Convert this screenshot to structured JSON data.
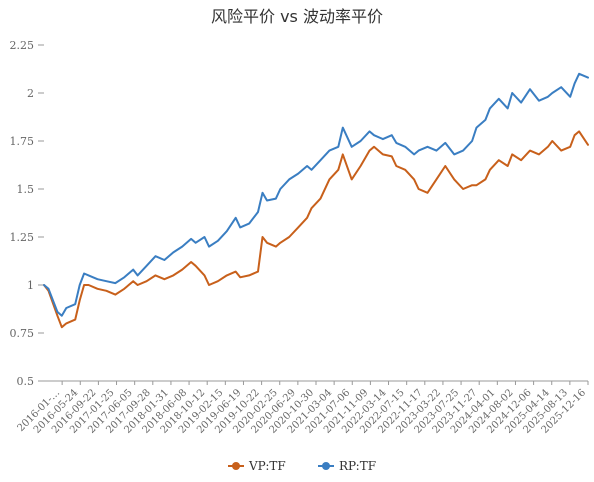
{
  "chart_data": {
    "type": "line",
    "title": "风险平价 vs 波动率平价",
    "xlabel": "",
    "ylabel": "",
    "ylim": [
      0.5,
      2.25
    ],
    "yticks": [
      "0.5",
      "0.75",
      "1",
      "1.25",
      "1.5",
      "1.75",
      "2",
      "2.25"
    ],
    "ytick_values": [
      0.5,
      0.75,
      1,
      1.25,
      1.5,
      1.75,
      2,
      2.25
    ],
    "grid": false,
    "legend_position": "bottom-center",
    "x_start": "2016-01",
    "x_end": "2026-03",
    "xticks": [
      "2016-01-…",
      "2016-05-24",
      "2016-09-22",
      "2017-01-25",
      "2017-06-05",
      "2017-09-28",
      "2018-01-31",
      "2018-06-08",
      "2018-10-12",
      "2019-02-15",
      "2019-06-19",
      "2019-10-22",
      "2020-02-25",
      "2020-06-29",
      "2020-10-30",
      "2021-03-04",
      "2021-07-06",
      "2021-11-09",
      "2022-03-14",
      "2022-07-15",
      "2022-11-17",
      "2023-03-22",
      "2023-07-25",
      "2023-11-27",
      "2024-04-01",
      "2024-08-02",
      "2024-12-06",
      "2025-04-14",
      "2025-08-13",
      "2025-12-16"
    ],
    "series": [
      {
        "name": "VP:TF",
        "color": "#c8601b",
        "x": [
          "2016-01",
          "2016-02",
          "2016-04",
          "2016-05",
          "2016-06",
          "2016-08",
          "2016-09",
          "2016-10",
          "2016-11",
          "2017-01",
          "2017-03",
          "2017-05",
          "2017-07",
          "2017-09",
          "2017-10",
          "2017-12",
          "2018-02",
          "2018-04",
          "2018-06",
          "2018-08",
          "2018-10",
          "2018-11",
          "2019-01",
          "2019-02",
          "2019-04",
          "2019-06",
          "2019-08",
          "2019-09",
          "2019-11",
          "2020-01",
          "2020-02",
          "2020-03",
          "2020-05",
          "2020-06",
          "2020-08",
          "2020-10",
          "2020-12",
          "2021-01",
          "2021-03",
          "2021-05",
          "2021-07",
          "2021-08",
          "2021-10",
          "2021-12",
          "2022-02",
          "2022-03",
          "2022-05",
          "2022-07",
          "2022-08",
          "2022-10",
          "2022-12",
          "2023-01",
          "2023-03",
          "2023-05",
          "2023-07",
          "2023-09",
          "2023-11",
          "2024-01",
          "2024-02",
          "2024-04",
          "2024-05",
          "2024-07",
          "2024-09",
          "2024-10",
          "2024-12",
          "2025-02",
          "2025-04",
          "2025-06",
          "2025-07",
          "2025-09",
          "2025-11",
          "2025-12",
          "2026-01",
          "2026-03"
        ],
        "values": [
          1.0,
          0.97,
          0.84,
          0.78,
          0.8,
          0.82,
          0.92,
          1.0,
          1.0,
          0.98,
          0.97,
          0.95,
          0.98,
          1.02,
          1.0,
          1.02,
          1.05,
          1.03,
          1.05,
          1.08,
          1.12,
          1.1,
          1.05,
          1.0,
          1.02,
          1.05,
          1.07,
          1.04,
          1.05,
          1.07,
          1.25,
          1.22,
          1.2,
          1.22,
          1.25,
          1.3,
          1.35,
          1.4,
          1.45,
          1.55,
          1.6,
          1.68,
          1.55,
          1.62,
          1.7,
          1.72,
          1.68,
          1.67,
          1.62,
          1.6,
          1.55,
          1.5,
          1.48,
          1.55,
          1.62,
          1.55,
          1.5,
          1.52,
          1.52,
          1.55,
          1.6,
          1.65,
          1.62,
          1.68,
          1.65,
          1.7,
          1.68,
          1.72,
          1.75,
          1.7,
          1.72,
          1.78,
          1.8,
          1.73
        ]
      },
      {
        "name": "RP:TF",
        "color": "#3a7ec2",
        "x": [
          "2016-01",
          "2016-02",
          "2016-04",
          "2016-05",
          "2016-06",
          "2016-08",
          "2016-09",
          "2016-10",
          "2016-11",
          "2017-01",
          "2017-03",
          "2017-05",
          "2017-07",
          "2017-09",
          "2017-10",
          "2017-12",
          "2018-02",
          "2018-04",
          "2018-06",
          "2018-08",
          "2018-10",
          "2018-11",
          "2019-01",
          "2019-02",
          "2019-04",
          "2019-06",
          "2019-08",
          "2019-09",
          "2019-11",
          "2020-01",
          "2020-02",
          "2020-03",
          "2020-05",
          "2020-06",
          "2020-08",
          "2020-10",
          "2020-12",
          "2021-01",
          "2021-03",
          "2021-05",
          "2021-07",
          "2021-08",
          "2021-10",
          "2021-12",
          "2022-02",
          "2022-03",
          "2022-05",
          "2022-07",
          "2022-08",
          "2022-10",
          "2022-12",
          "2023-01",
          "2023-03",
          "2023-05",
          "2023-07",
          "2023-09",
          "2023-11",
          "2024-01",
          "2024-02",
          "2024-04",
          "2024-05",
          "2024-07",
          "2024-09",
          "2024-10",
          "2024-12",
          "2025-02",
          "2025-04",
          "2025-06",
          "2025-07",
          "2025-09",
          "2025-11",
          "2025-12",
          "2026-01",
          "2026-03"
        ],
        "values": [
          1.0,
          0.98,
          0.86,
          0.84,
          0.88,
          0.9,
          1.0,
          1.06,
          1.05,
          1.03,
          1.02,
          1.01,
          1.04,
          1.08,
          1.05,
          1.1,
          1.15,
          1.13,
          1.17,
          1.2,
          1.24,
          1.22,
          1.25,
          1.2,
          1.23,
          1.28,
          1.35,
          1.3,
          1.32,
          1.38,
          1.48,
          1.44,
          1.45,
          1.5,
          1.55,
          1.58,
          1.62,
          1.6,
          1.65,
          1.7,
          1.72,
          1.82,
          1.72,
          1.75,
          1.8,
          1.78,
          1.76,
          1.78,
          1.74,
          1.72,
          1.68,
          1.7,
          1.72,
          1.7,
          1.74,
          1.68,
          1.7,
          1.75,
          1.82,
          1.86,
          1.92,
          1.97,
          1.92,
          2.0,
          1.95,
          2.02,
          1.96,
          1.98,
          2.0,
          2.03,
          1.98,
          2.05,
          2.1,
          2.08
        ]
      }
    ]
  }
}
